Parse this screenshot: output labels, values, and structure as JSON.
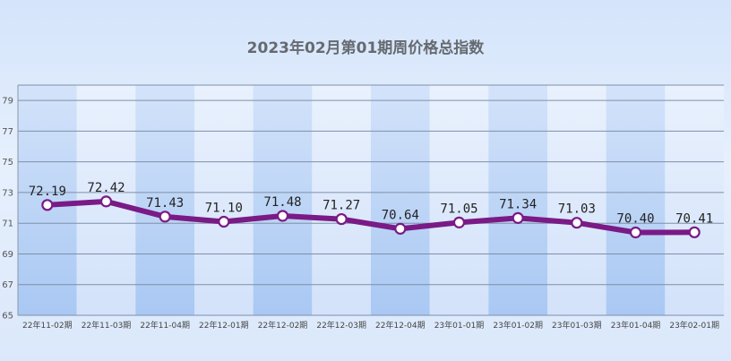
{
  "chart_data": {
    "type": "line",
    "title": "2023年02月第01期周价格总指数",
    "categories": [
      "22年11-02期",
      "22年11-03期",
      "22年11-04期",
      "22年12-01期",
      "22年12-02期",
      "22年12-03期",
      "22年12-04期",
      "23年01-01期",
      "23年01-02期",
      "23年01-03期",
      "23年01-04期",
      "23年02-01期"
    ],
    "series": [
      {
        "values": [
          72.19,
          72.42,
          71.43,
          71.1,
          71.48,
          71.27,
          70.64,
          71.05,
          71.34,
          71.03,
          70.4,
          70.41
        ]
      }
    ],
    "data_labels": [
      "72.19",
      "72.42",
      "71.43",
      "71.10",
      "71.48",
      "71.27",
      "70.64",
      "71.05",
      "71.34",
      "71.03",
      "70.40",
      "70.41"
    ],
    "yticks": [
      "65",
      "67",
      "69",
      "71",
      "73",
      "75",
      "77",
      "79"
    ],
    "ylim": [
      65,
      80
    ],
    "grid": true,
    "colors": {
      "line": "#7a1a86",
      "marker_fill": "#ffffff",
      "band_dark": "#b9d3f6",
      "band_light": "#dfeafc",
      "grid": "#7f8fa8"
    }
  }
}
